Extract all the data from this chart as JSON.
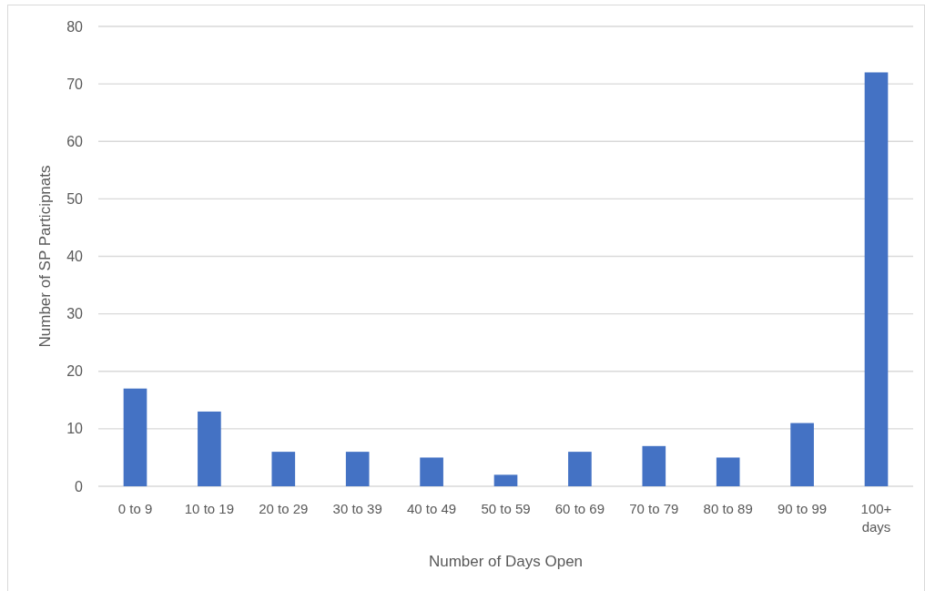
{
  "chart_data": {
    "type": "bar",
    "xlabel": "Number of Days Open",
    "ylabel": "Number of SP Participnats",
    "categories": [
      "0 to 9",
      "10 to 19",
      "20 to 29",
      "30 to 39",
      "40 to 49",
      "50 to 59",
      "60 to 69",
      "70 to 79",
      "80 to 89",
      "90 to 99",
      "100+ days"
    ],
    "values": [
      17,
      13,
      6,
      6,
      5,
      2,
      6,
      7,
      5,
      11,
      72
    ],
    "color": "#4472c4",
    "ylim": [
      0,
      80
    ],
    "yticks": [
      0,
      10,
      20,
      30,
      40,
      50,
      60,
      70,
      80
    ],
    "grid": "y"
  }
}
